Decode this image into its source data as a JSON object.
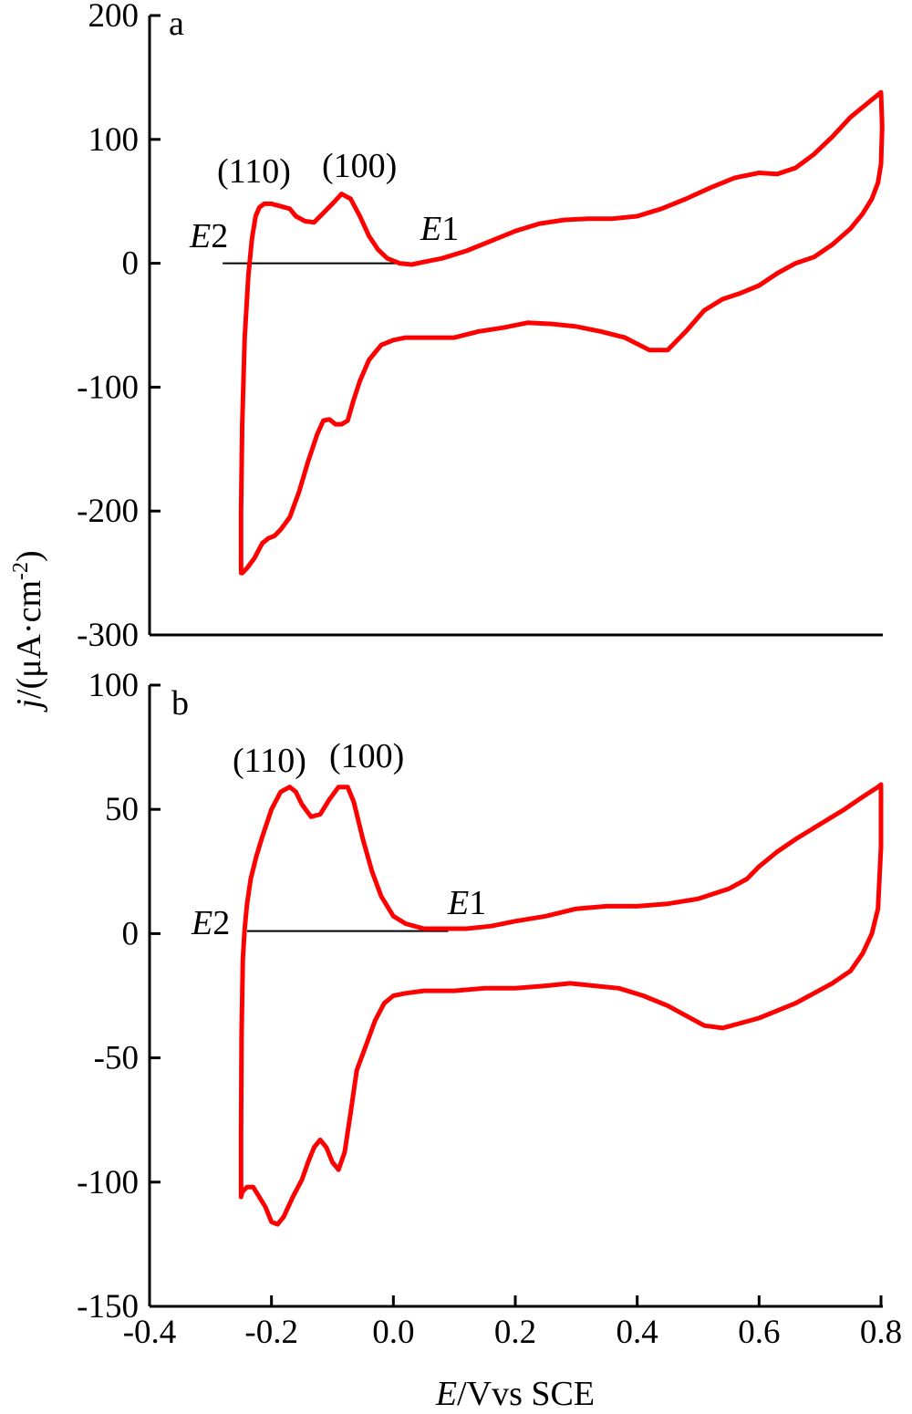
{
  "chart_data": [
    {
      "panel": "a",
      "type": "line",
      "xlim": [
        -0.4,
        0.8
      ],
      "ylim": [
        -300,
        200
      ],
      "yticks": [
        "200",
        "100",
        "0",
        "-100",
        "-200",
        "-300"
      ],
      "yticks_values": [
        200,
        100,
        0,
        -100,
        -200,
        -300
      ],
      "series": [
        {
          "color": "#ff0000",
          "x": [
            -0.25,
            -0.25,
            -0.248,
            -0.244,
            -0.238,
            -0.232,
            -0.226,
            -0.22,
            -0.212,
            -0.2,
            -0.185,
            -0.17,
            -0.16,
            -0.145,
            -0.13,
            -0.12,
            -0.1,
            -0.085,
            -0.07,
            -0.055,
            -0.04,
            -0.025,
            -0.01,
            0.01,
            0.03,
            0.05,
            0.08,
            0.12,
            0.16,
            0.2,
            0.24,
            0.28,
            0.32,
            0.36,
            0.4,
            0.44,
            0.48,
            0.52,
            0.56,
            0.6,
            0.63,
            0.66,
            0.69,
            0.72,
            0.75,
            0.78,
            0.8,
            0.802,
            0.8,
            0.795,
            0.785,
            0.77,
            0.75,
            0.72,
            0.69,
            0.66,
            0.63,
            0.6,
            0.57,
            0.54,
            0.51,
            0.48,
            0.45,
            0.42,
            0.38,
            0.34,
            0.3,
            0.26,
            0.22,
            0.18,
            0.14,
            0.1,
            0.06,
            0.02,
            0.0,
            -0.02,
            -0.04,
            -0.055,
            -0.065,
            -0.075,
            -0.085,
            -0.095,
            -0.105,
            -0.115,
            -0.125,
            -0.14,
            -0.155,
            -0.17,
            -0.185,
            -0.195,
            -0.205,
            -0.215,
            -0.228,
            -0.24,
            -0.248,
            -0.25
          ],
          "y": [
            -248,
            -200,
            -130,
            -60,
            -10,
            20,
            38,
            45,
            48,
            48,
            46,
            44,
            38,
            34,
            33,
            38,
            48,
            56,
            52,
            38,
            22,
            11,
            4,
            0,
            -1,
            1,
            4,
            10,
            18,
            26,
            32,
            35,
            36,
            36,
            38,
            44,
            52,
            61,
            69,
            73,
            72,
            77,
            88,
            102,
            118,
            130,
            138,
            110,
            80,
            65,
            52,
            40,
            28,
            15,
            5,
            0,
            -8,
            -18,
            -24,
            -29,
            -38,
            -55,
            -70,
            -70,
            -60,
            -55,
            -51,
            -49,
            -48,
            -52,
            -55,
            -60,
            -60,
            -60,
            -62,
            -66,
            -78,
            -95,
            -110,
            -127,
            -130,
            -130,
            -126,
            -127,
            -138,
            -160,
            -185,
            -205,
            -215,
            -220,
            -222,
            -226,
            -238,
            -246,
            -250,
            -250
          ]
        }
      ],
      "annotations": [
        "(110)",
        "(100)",
        "E2",
        "E1"
      ],
      "reference_line": {
        "x_start": -0.28,
        "x_end": 0.04,
        "y": 0
      }
    },
    {
      "panel": "b",
      "type": "line",
      "xlim": [
        -0.4,
        0.8
      ],
      "ylim": [
        -150,
        100
      ],
      "xticks": [
        "-0.4",
        "-0.2",
        "0.0",
        "0.2",
        "0.4",
        "0.6",
        "0.8"
      ],
      "xticks_values": [
        -0.4,
        -0.2,
        0.0,
        0.2,
        0.4,
        0.6,
        0.8
      ],
      "yticks": [
        "100",
        "50",
        "0",
        "-50",
        "-100",
        "-150"
      ],
      "yticks_values": [
        100,
        50,
        0,
        -50,
        -100,
        -150
      ],
      "series": [
        {
          "color": "#ff0000",
          "x": [
            -0.25,
            -0.25,
            -0.249,
            -0.247,
            -0.244,
            -0.24,
            -0.234,
            -0.225,
            -0.215,
            -0.2,
            -0.185,
            -0.17,
            -0.16,
            -0.15,
            -0.135,
            -0.12,
            -0.105,
            -0.09,
            -0.075,
            -0.065,
            -0.05,
            -0.035,
            -0.02,
            0.0,
            0.02,
            0.05,
            0.08,
            0.12,
            0.16,
            0.2,
            0.25,
            0.3,
            0.35,
            0.4,
            0.45,
            0.5,
            0.55,
            0.58,
            0.6,
            0.63,
            0.66,
            0.7,
            0.74,
            0.77,
            0.795,
            0.8,
            0.8,
            0.795,
            0.785,
            0.77,
            0.75,
            0.72,
            0.69,
            0.66,
            0.63,
            0.6,
            0.57,
            0.54,
            0.51,
            0.48,
            0.45,
            0.41,
            0.37,
            0.33,
            0.29,
            0.25,
            0.2,
            0.15,
            0.1,
            0.05,
            0.02,
            0.0,
            -0.015,
            -0.03,
            -0.045,
            -0.06,
            -0.07,
            -0.08,
            -0.09,
            -0.1,
            -0.11,
            -0.12,
            -0.13,
            -0.14,
            -0.15,
            -0.165,
            -0.18,
            -0.19,
            -0.2,
            -0.21,
            -0.22,
            -0.23,
            -0.24,
            -0.248,
            -0.25
          ],
          "y": [
            -106,
            -80,
            -40,
            -10,
            2,
            12,
            22,
            31,
            39,
            50,
            57,
            59,
            57,
            52,
            47,
            48,
            54,
            59,
            59,
            53,
            38,
            25,
            15,
            7,
            4,
            2,
            2,
            2,
            3,
            5,
            7,
            10,
            11,
            11,
            12,
            14,
            18,
            22,
            27,
            33,
            38,
            44,
            50,
            55,
            59,
            60,
            35,
            10,
            0,
            -8,
            -15,
            -20,
            -24,
            -28,
            -31,
            -34,
            -36,
            -38,
            -37,
            -33,
            -29,
            -25,
            -22,
            -21,
            -20,
            -21,
            -22,
            -22,
            -23,
            -23,
            -24,
            -25,
            -28,
            -35,
            -45,
            -55,
            -72,
            -88,
            -95,
            -92,
            -86,
            -83,
            -86,
            -92,
            -99,
            -106,
            -114,
            -117,
            -116,
            -110,
            -106,
            -102,
            -102,
            -104,
            -106
          ]
        }
      ],
      "annotations": [
        "(110)",
        "(100)",
        "E2",
        "E1"
      ],
      "reference_line": {
        "x_start": -0.24,
        "x_end": 0.09,
        "y": 1
      }
    }
  ],
  "panel_labels": [
    "a",
    "b"
  ],
  "ylabel_italic": "j",
  "ylabel_rest": "/(μA·cm",
  "ylabel_sup": "-2",
  "ylabel_close": ")",
  "xlabel_italic": "E",
  "xlabel_rest": "/Vvs SCE",
  "ann_110": "(110)",
  "ann_100": "(100)",
  "ann_E": "E",
  "ann_2": "2",
  "ann_1": "1",
  "line_color": "#ff0000"
}
